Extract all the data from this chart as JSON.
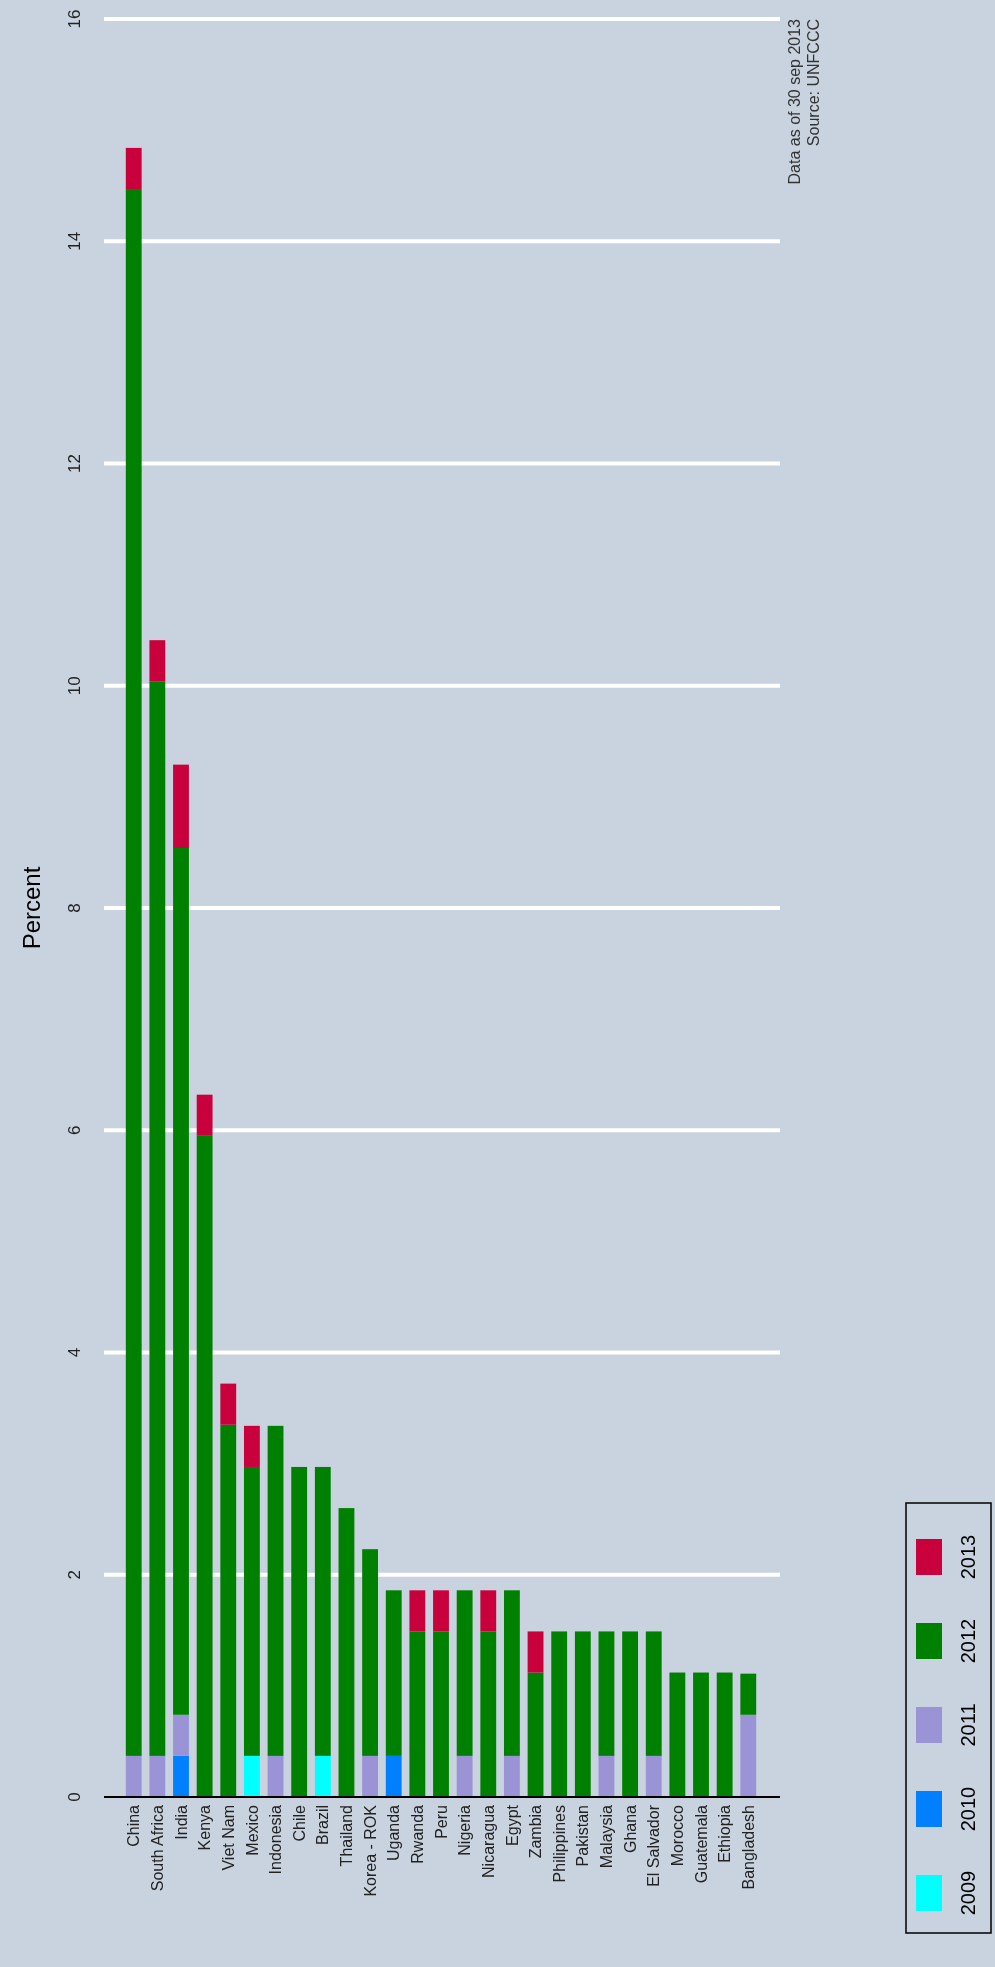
{
  "chart_data": {
    "type": "bar",
    "stacked": true,
    "ylabel": "Percent",
    "categories": [
      "China",
      "South Africa",
      "India",
      "Kenya",
      "Viet Nam",
      "Mexico",
      "Indonesia",
      "Chile",
      "Brazil",
      "Thailand",
      "Korea - ROK",
      "Uganda",
      "Rwanda",
      "Peru",
      "Nigeria",
      "Nicaragua",
      "Egypt",
      "Zambia",
      "Philippines",
      "Pakistan",
      "Malaysia",
      "Ghana",
      "El Salvador",
      "Morocco",
      "Guatemala",
      "Ethiopia",
      "Bangladesh"
    ],
    "series": [
      {
        "name": "2009",
        "color": "#00ffff",
        "values": [
          null,
          null,
          null,
          null,
          null,
          0.37,
          null,
          null,
          0.37,
          null,
          null,
          null,
          null,
          null,
          null,
          null,
          null,
          null,
          null,
          null,
          null,
          null,
          null,
          null,
          null,
          null,
          null
        ]
      },
      {
        "name": "2010",
        "color": "#0080ff",
        "values": [
          null,
          null,
          0.37,
          null,
          null,
          null,
          null,
          null,
          null,
          null,
          null,
          0.37,
          null,
          null,
          null,
          null,
          null,
          null,
          null,
          null,
          null,
          null,
          null,
          null,
          null,
          null,
          null
        ]
      },
      {
        "name": "2011",
        "color": "#9a94d6",
        "values": [
          0.37,
          0.37,
          0.37,
          null,
          null,
          null,
          0.37,
          null,
          null,
          null,
          0.37,
          null,
          null,
          null,
          0.37,
          null,
          0.37,
          null,
          null,
          null,
          0.37,
          null,
          0.37,
          null,
          null,
          null,
          0.74
        ]
      },
      {
        "name": "2012",
        "color": "#008000",
        "values": [
          14.1,
          9.67,
          7.8,
          5.95,
          3.35,
          2.6,
          2.97,
          2.97,
          2.6,
          2.6,
          1.86,
          1.49,
          1.49,
          1.49,
          1.49,
          1.49,
          1.49,
          1.12,
          1.49,
          1.49,
          1.12,
          1.49,
          1.12,
          1.12,
          1.12,
          1.12,
          0.37
        ]
      },
      {
        "name": "2013",
        "color": "#c8003c",
        "values": [
          0.37,
          0.37,
          0.75,
          0.37,
          0.37,
          0.37,
          null,
          null,
          null,
          null,
          null,
          null,
          0.37,
          0.37,
          null,
          0.37,
          null,
          0.37,
          null,
          null,
          null,
          null,
          null,
          null,
          null,
          null,
          null
        ]
      }
    ],
    "ylim": [
      0,
      16
    ],
    "yticks": [
      0,
      2,
      4,
      6,
      8,
      10,
      12,
      14,
      16
    ],
    "grid": "y",
    "legend": "right",
    "annotations": [
      "Data as of 30 sep 2013",
      "Source: UNFCCC"
    ]
  }
}
